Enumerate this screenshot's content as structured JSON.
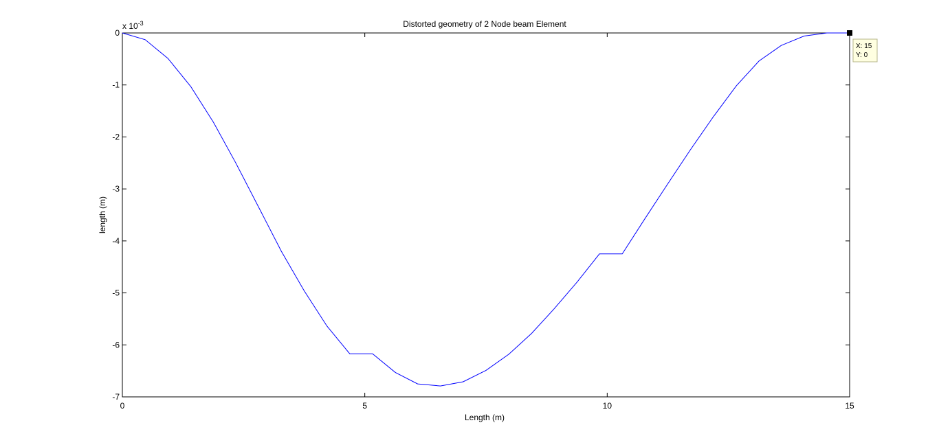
{
  "chart_data": {
    "type": "line",
    "title": "Distorted geometry of 2 Node beam Element",
    "xlabel": "Length (m)",
    "ylabel": "length (m)",
    "y_scale_label": "x 10",
    "y_scale_exponent": "-3",
    "xlim": [
      0,
      15
    ],
    "ylim": [
      -7,
      0
    ],
    "x_ticks": [
      0,
      5,
      10,
      15
    ],
    "x_tick_labels": [
      "0",
      "5",
      "10",
      "15"
    ],
    "y_ticks": [
      0,
      -1,
      -2,
      -3,
      -4,
      -5,
      -6,
      -7
    ],
    "y_tick_labels": [
      "0",
      "-1",
      "-2",
      "-3",
      "-4",
      "-5",
      "-6",
      "-7"
    ],
    "grid": false,
    "series": [
      {
        "color": "#0000ff",
        "x": [
          0,
          0.47,
          0.94,
          1.41,
          1.88,
          2.34,
          2.81,
          3.28,
          3.75,
          4.22,
          4.69,
          5.16,
          5.63,
          6.09,
          6.56,
          7.03,
          7.5,
          7.97,
          8.44,
          8.91,
          9.38,
          9.84,
          10.31,
          10.78,
          11.25,
          11.72,
          12.19,
          12.66,
          13.13,
          13.59,
          14.06,
          14.53,
          15
        ],
        "y": [
          0,
          -0.13,
          -0.49,
          -1.03,
          -1.72,
          -2.5,
          -3.35,
          -4.2,
          -4.96,
          -5.64,
          -6.17,
          -6.17,
          -6.53,
          -6.75,
          -6.79,
          -6.71,
          -6.49,
          -6.18,
          -5.78,
          -5.3,
          -4.79,
          -4.25,
          -4.25,
          -3.57,
          -2.9,
          -2.24,
          -1.61,
          -1.02,
          -0.54,
          -0.24,
          -0.06,
          0,
          0
        ]
      }
    ],
    "datatip": {
      "x_text": "X: 15",
      "y_text": "Y: 0",
      "x": 15,
      "y": 0
    }
  }
}
